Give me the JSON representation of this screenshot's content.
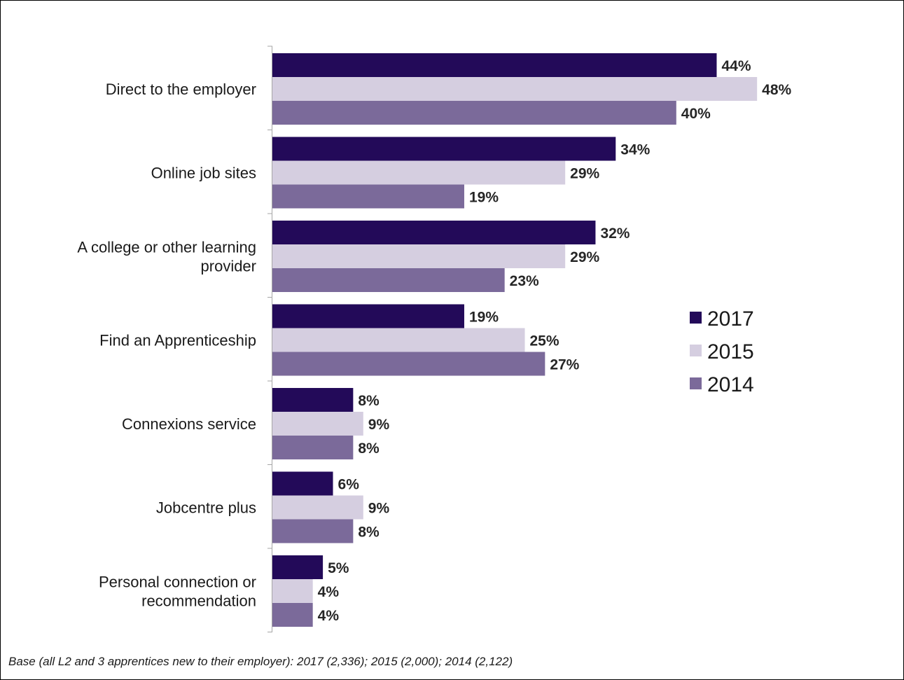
{
  "chart_data": {
    "type": "bar",
    "orientation": "horizontal",
    "categories": [
      [
        "Direct to the employer"
      ],
      [
        "Online job sites"
      ],
      [
        "A college or other learning",
        "provider"
      ],
      [
        "Find an Apprenticeship"
      ],
      [
        "Connexions service"
      ],
      [
        "Jobcentre plus"
      ],
      [
        "Personal connection or",
        "recommendation"
      ]
    ],
    "series": [
      {
        "name": "2017",
        "color": "#230a59",
        "values": [
          44,
          34,
          32,
          19,
          8,
          6,
          5
        ]
      },
      {
        "name": "2015",
        "color": "#d5cee0",
        "values": [
          48,
          29,
          29,
          25,
          9,
          9,
          4
        ]
      },
      {
        "name": "2014",
        "color": "#7b6a9a",
        "values": [
          40,
          19,
          23,
          27,
          8,
          8,
          4
        ]
      }
    ],
    "value_suffix": "%",
    "legend_position": "right",
    "grid": false
  },
  "footnote": "Base (all L2 and 3 apprentices new to their employer): 2017 (2,336); 2015 (2,000); 2014 (2,122)"
}
